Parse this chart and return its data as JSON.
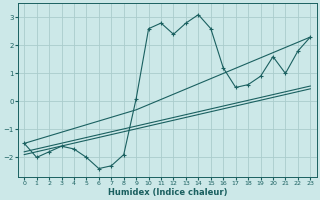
{
  "xlabel": "Humidex (Indice chaleur)",
  "bg_color": "#cce8e8",
  "line_color": "#1a6060",
  "grid_color": "#aacccc",
  "xlim": [
    -0.5,
    23.5
  ],
  "ylim": [
    -2.7,
    3.5
  ],
  "yticks": [
    -2,
    -1,
    0,
    1,
    2,
    3
  ],
  "xticks": [
    0,
    1,
    2,
    3,
    4,
    5,
    6,
    7,
    8,
    9,
    10,
    11,
    12,
    13,
    14,
    15,
    16,
    17,
    18,
    19,
    20,
    21,
    22,
    23
  ],
  "main_x": [
    0,
    1,
    2,
    3,
    4,
    5,
    6,
    7,
    8,
    9,
    10,
    11,
    12,
    13,
    14,
    15,
    16,
    17,
    18,
    19,
    20,
    21,
    22,
    23
  ],
  "main_y": [
    -1.5,
    -2.0,
    -1.8,
    -1.6,
    -1.7,
    -2.0,
    -2.4,
    -2.3,
    -1.9,
    0.1,
    2.6,
    2.8,
    2.4,
    2.8,
    3.1,
    2.6,
    1.2,
    0.5,
    0.6,
    0.9,
    1.6,
    1.0,
    1.8,
    2.3
  ],
  "line2_x": [
    0,
    23
  ],
  "line2_y": [
    -1.8,
    0.55
  ],
  "line3_x": [
    0,
    23
  ],
  "line3_y": [
    -1.9,
    0.45
  ],
  "line4_x": [
    0,
    9,
    23
  ],
  "line4_y": [
    -1.5,
    -0.3,
    2.3
  ]
}
